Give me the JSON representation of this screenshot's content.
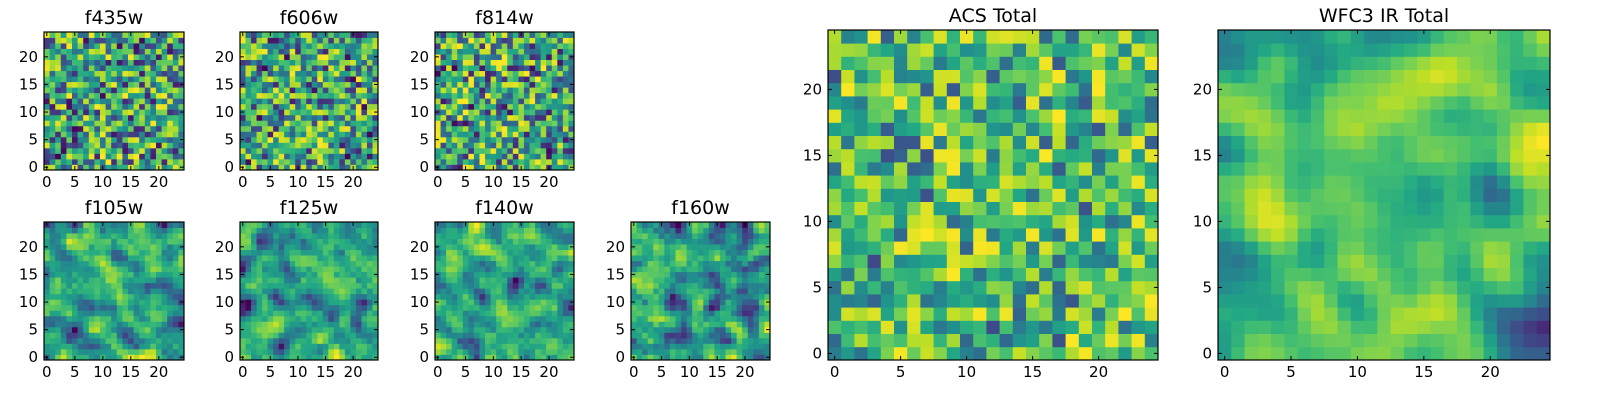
{
  "chart_data": [
    {
      "type": "heatmap",
      "title": "f435w",
      "xticks": [
        0,
        5,
        10,
        15,
        20
      ],
      "yticks": [
        0,
        5,
        10,
        15,
        20
      ],
      "xlim": [
        -0.5,
        24.5
      ],
      "ylim": [
        -0.5,
        24.5
      ],
      "grid": 25,
      "seed": 435,
      "smooth": 0,
      "bias": 0.0,
      "colormap": "viridis"
    },
    {
      "type": "heatmap",
      "title": "f606w",
      "xticks": [
        0,
        5,
        10,
        15,
        20
      ],
      "yticks": [
        0,
        5,
        10,
        15,
        20
      ],
      "xlim": [
        -0.5,
        24.5
      ],
      "ylim": [
        -0.5,
        24.5
      ],
      "grid": 25,
      "seed": 606,
      "smooth": 0,
      "bias": 0.0,
      "colormap": "viridis"
    },
    {
      "type": "heatmap",
      "title": "f814w",
      "xticks": [
        0,
        5,
        10,
        15,
        20
      ],
      "yticks": [
        0,
        5,
        10,
        15,
        20
      ],
      "xlim": [
        -0.5,
        24.5
      ],
      "ylim": [
        -0.5,
        24.5
      ],
      "grid": 25,
      "seed": 814,
      "smooth": 0,
      "bias": 0.0,
      "colormap": "viridis"
    },
    {
      "type": "heatmap",
      "title": "f105w",
      "xticks": [
        0,
        5,
        10,
        15,
        20
      ],
      "yticks": [
        0,
        5,
        10,
        15,
        20
      ],
      "xlim": [
        -0.5,
        24.5
      ],
      "ylim": [
        -0.5,
        24.5
      ],
      "grid": 25,
      "seed": 105,
      "smooth": 1,
      "bias": 0.0,
      "colormap": "viridis"
    },
    {
      "type": "heatmap",
      "title": "f125w",
      "xticks": [
        0,
        5,
        10,
        15,
        20
      ],
      "yticks": [
        0,
        5,
        10,
        15,
        20
      ],
      "xlim": [
        -0.5,
        24.5
      ],
      "ylim": [
        -0.5,
        24.5
      ],
      "grid": 25,
      "seed": 125,
      "smooth": 1,
      "bias": 0.0,
      "colormap": "viridis"
    },
    {
      "type": "heatmap",
      "title": "f140w",
      "xticks": [
        0,
        5,
        10,
        15,
        20
      ],
      "yticks": [
        0,
        5,
        10,
        15,
        20
      ],
      "xlim": [
        -0.5,
        24.5
      ],
      "ylim": [
        -0.5,
        24.5
      ],
      "grid": 25,
      "seed": 140,
      "smooth": 1,
      "bias": 0.0,
      "colormap": "viridis"
    },
    {
      "type": "heatmap",
      "title": "f160w",
      "xticks": [
        0,
        5,
        10,
        15,
        20
      ],
      "yticks": [
        0,
        5,
        10,
        15,
        20
      ],
      "xlim": [
        -0.5,
        24.5
      ],
      "ylim": [
        -0.5,
        24.5
      ],
      "grid": 25,
      "seed": 160,
      "smooth": 1,
      "bias": 0.0,
      "colormap": "viridis"
    },
    {
      "type": "heatmap",
      "title": "ACS Total",
      "xticks": [
        0,
        5,
        10,
        15,
        20
      ],
      "yticks": [
        0,
        5,
        10,
        15,
        20
      ],
      "xlim": [
        -0.5,
        24.5
      ],
      "ylim": [
        -0.5,
        24.5
      ],
      "grid": 25,
      "seed": 1001,
      "smooth": 0,
      "bias": 0.22,
      "colormap": "viridis"
    },
    {
      "type": "heatmap",
      "title": "WFC3 IR Total",
      "xticks": [
        0,
        5,
        10,
        15,
        20
      ],
      "yticks": [
        0,
        5,
        10,
        15,
        20
      ],
      "xlim": [
        -0.5,
        24.5
      ],
      "ylim": [
        -0.5,
        24.5
      ],
      "grid": 25,
      "seed": 2002,
      "smooth": 2,
      "bias": 0.12,
      "colormap": "viridis"
    }
  ]
}
